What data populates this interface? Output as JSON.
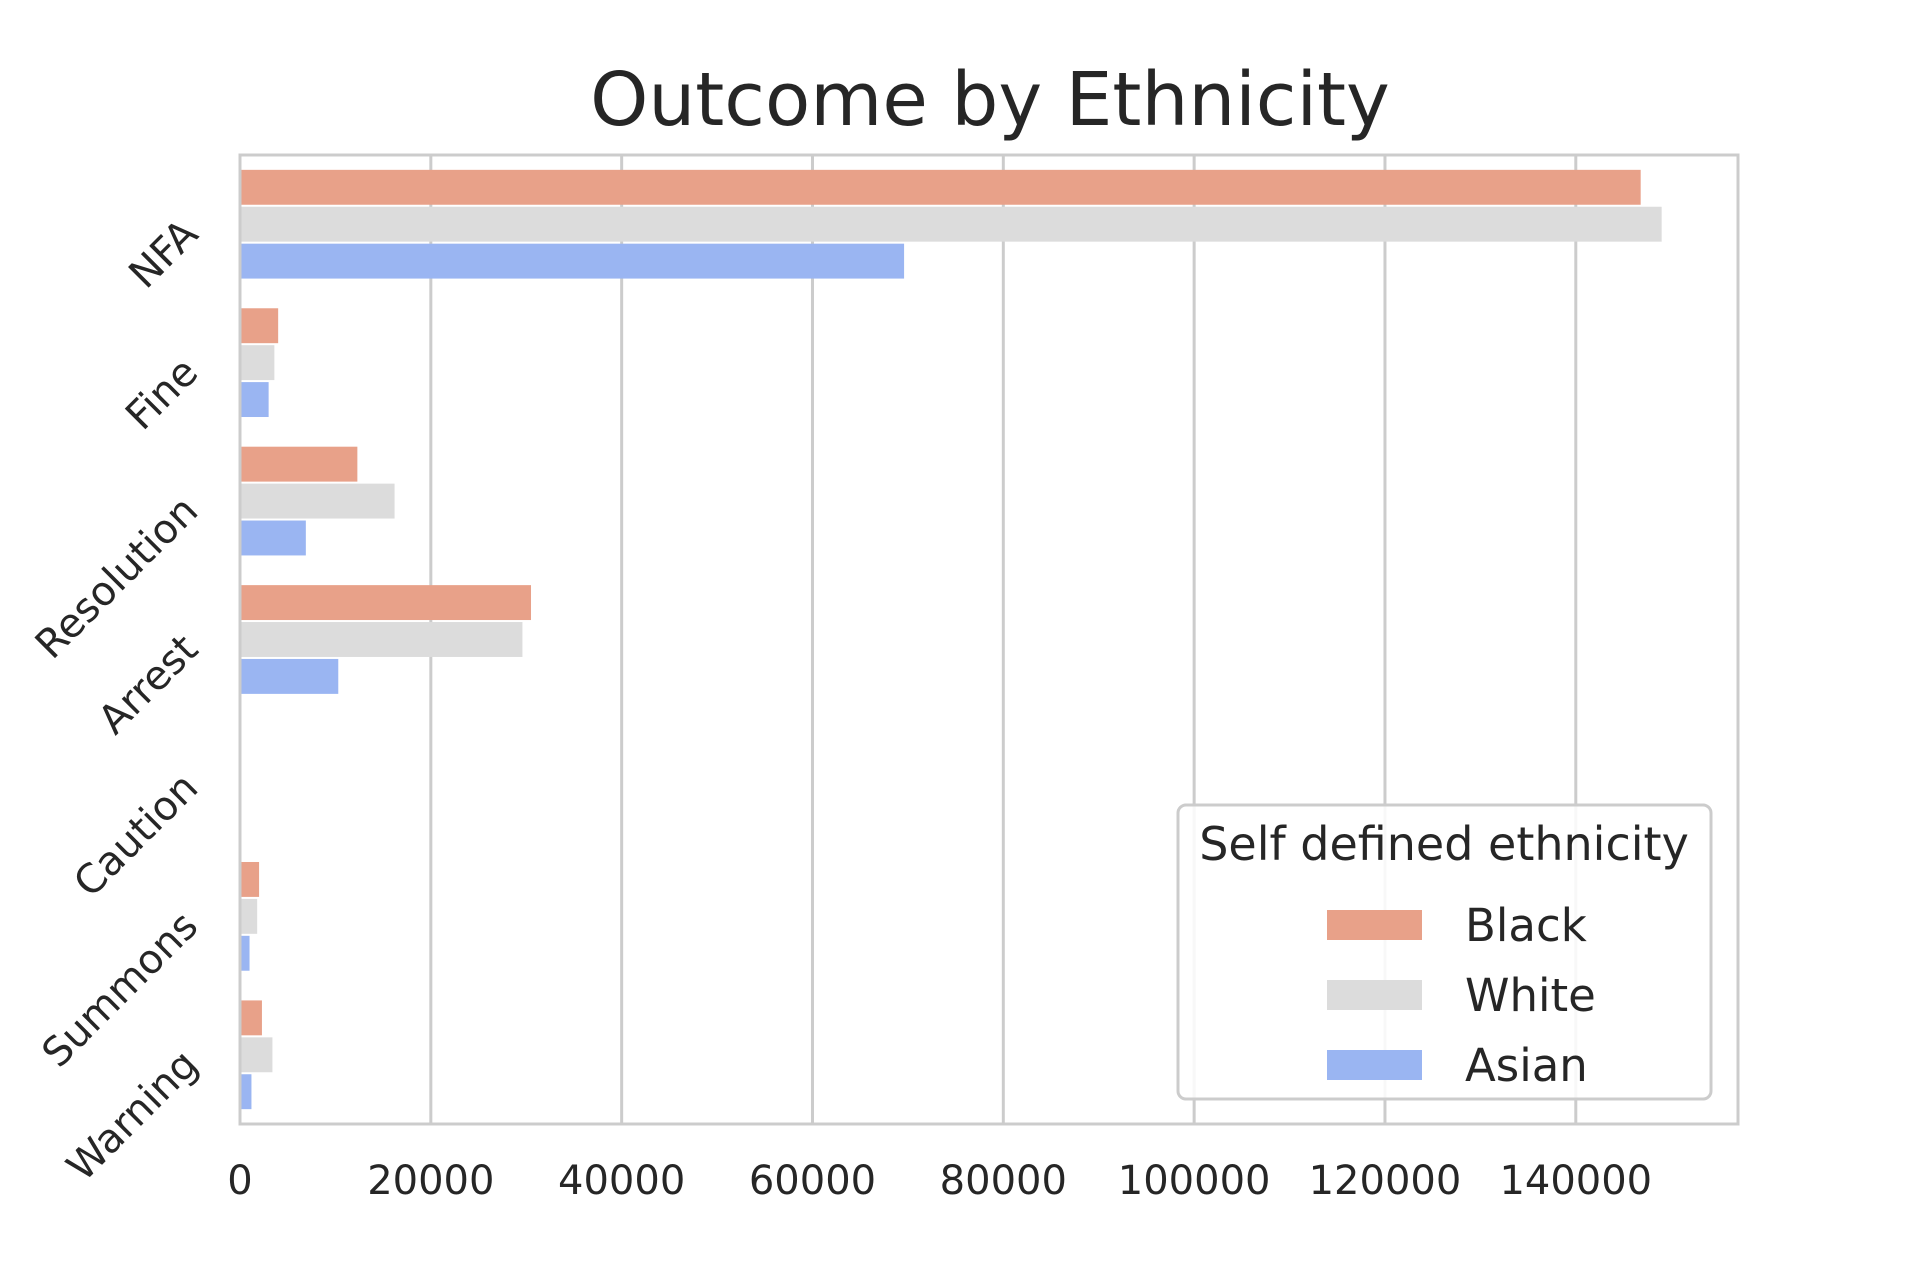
{
  "chart_data": {
    "type": "bar",
    "orientation": "horizontal",
    "title": "Outcome by Ethnicity",
    "xlabel": "",
    "ylabel": "",
    "categories": [
      "NFA",
      "Fine",
      "Resolution",
      "Arrest",
      "Caution",
      "Summons",
      "Warning"
    ],
    "series": [
      {
        "name": "Black",
        "color": "#e8a189",
        "values": [
          146800,
          4000,
          12300,
          30500,
          0,
          2000,
          2300
        ]
      },
      {
        "name": "White",
        "color": "#dcdcdc",
        "values": [
          149000,
          3600,
          16200,
          29600,
          0,
          1800,
          3400
        ]
      },
      {
        "name": "Asian",
        "color": "#9ab5f2",
        "values": [
          69600,
          3000,
          6900,
          10300,
          0,
          1000,
          1200
        ]
      }
    ],
    "xlim": [
      0,
      157000
    ],
    "xticks": [
      0,
      20000,
      40000,
      60000,
      80000,
      100000,
      120000,
      140000
    ],
    "xtick_labels": [
      "0",
      "20000",
      "40000",
      "60000",
      "80000",
      "100000",
      "120000",
      "140000"
    ],
    "grid": "vertical",
    "legend": {
      "title": "Self defined ethnicity",
      "position": "lower right",
      "entries": [
        "Black",
        "White",
        "Asian"
      ]
    }
  }
}
